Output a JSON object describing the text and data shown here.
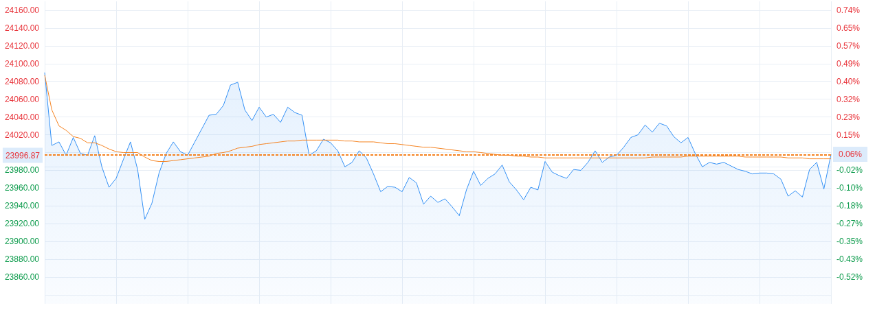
{
  "chart_data": {
    "type": "line",
    "categories": [
      null,
      null,
      null,
      null,
      null,
      null,
      null,
      null,
      null,
      null,
      null,
      null,
      null,
      null,
      null,
      null,
      null,
      null,
      null,
      null,
      null,
      null,
      null,
      null,
      null,
      null,
      null,
      null,
      null,
      null,
      null,
      null,
      null,
      null,
      null,
      null,
      null,
      null,
      null,
      null,
      null,
      null,
      null,
      null,
      null,
      null,
      null,
      null,
      null,
      null,
      null,
      null,
      null,
      null,
      null,
      null,
      null,
      null,
      null,
      null,
      null,
      null,
      null,
      null,
      null,
      null,
      null,
      null,
      null,
      null,
      null,
      null,
      null,
      null,
      null,
      null,
      null,
      null,
      null,
      null,
      null,
      null,
      null,
      null,
      null,
      null,
      null,
      null,
      null,
      null,
      null,
      null,
      null,
      null,
      null,
      null,
      null,
      null,
      null,
      null,
      null,
      null,
      null,
      null,
      null,
      null,
      null,
      null,
      null,
      null,
      null
    ],
    "series": [
      {
        "type": "area",
        "color": "#3390f5",
        "values": [
          24090,
          24008,
          24012,
          23997,
          24017,
          23999,
          23997,
          24019,
          23984,
          23961,
          23971,
          23992,
          24012,
          23981,
          23925,
          23943,
          23977,
          23999,
          24012,
          24001,
          23997,
          24012,
          24027,
          24042,
          24043,
          24053,
          24076,
          24079,
          24048,
          24036,
          24051,
          24040,
          24043,
          24034,
          24051,
          24045,
          24042,
          23997,
          24002,
          24015,
          24011,
          24002,
          23984,
          23989,
          24002,
          23994,
          23976,
          23956,
          23962,
          23961,
          23956,
          23972,
          23966,
          23942,
          23951,
          23944,
          23948,
          23939,
          23929,
          23958,
          23979,
          23963,
          23971,
          23976,
          23986,
          23967,
          23958,
          23947,
          23961,
          23958,
          23990,
          23978,
          23974,
          23971,
          23981,
          23980,
          23989,
          24002,
          23989,
          23995,
          23997,
          24006,
          24017,
          24020,
          24031,
          24023,
          24033,
          24030,
          24018,
          24011,
          24017,
          23999,
          23984,
          23989,
          23987,
          23989,
          23985,
          23981,
          23979,
          23976,
          23977,
          23977,
          23976,
          23970,
          23951,
          23957,
          23950,
          23981,
          23989,
          23959,
          23998
        ]
      },
      {
        "type": "line",
        "color": "#f5821f",
        "values": [
          24087,
          24048,
          24030,
          24025,
          24018,
          24016,
          24011,
          24011,
          24008,
          24004,
          24001,
          24000,
          24000,
          24000,
          23995,
          23991,
          23990,
          23990,
          23991,
          23992,
          23993,
          23994,
          23995,
          23996,
          23999,
          24000,
          24002,
          24005,
          24006,
          24007,
          24009,
          24010,
          24011,
          24012,
          24013,
          24013,
          24014,
          24014,
          24014,
          24014,
          24014,
          24014,
          24013,
          24013,
          24012,
          24012,
          24012,
          24011,
          24010,
          24010,
          24009,
          24008,
          24007,
          24006,
          24006,
          24005,
          24004,
          24003,
          24002,
          24001,
          24001,
          24000,
          23999,
          23998,
          23997,
          23997,
          23996,
          23996,
          23995,
          23995,
          23994,
          23994,
          23994,
          23994,
          23994,
          23994,
          23994,
          23994,
          23994,
          23994,
          23994,
          23994,
          23994,
          23994,
          23994,
          23995,
          23995,
          23995,
          23995,
          23995,
          23996,
          23996,
          23996,
          23996,
          23996,
          23996,
          23996,
          23996,
          23995,
          23995,
          23995,
          23995,
          23995,
          23995,
          23994,
          23994,
          23994,
          23993,
          23993,
          23993,
          23993
        ]
      }
    ],
    "ylim": [
      23830,
      24170
    ],
    "yticks": [
      {
        "value": 23840,
        "label": null
      },
      {
        "value": 23860,
        "label": "23860.00"
      },
      {
        "value": 23880,
        "label": "23880.00"
      },
      {
        "value": 23900,
        "label": "23900.00"
      },
      {
        "value": 23920,
        "label": "23920.00"
      },
      {
        "value": 23940,
        "label": "23940.00"
      },
      {
        "value": 23960,
        "label": "23960.00"
      },
      {
        "value": 23980,
        "label": "23980.00"
      },
      {
        "value": 24000,
        "label": null
      },
      {
        "value": 24020,
        "label": "24020.00"
      },
      {
        "value": 24040,
        "label": "24040.00"
      },
      {
        "value": 24060,
        "label": "24060.00"
      },
      {
        "value": 24080,
        "label": "24080.00"
      },
      {
        "value": 24100,
        "label": "24100.00"
      },
      {
        "value": 24120,
        "label": "24120.00"
      },
      {
        "value": 24140,
        "label": "24140.00"
      },
      {
        "value": 24160,
        "label": "24160.00"
      }
    ],
    "y2lim": [
      -0.646,
      0.782
    ],
    "y2ticks": [
      {
        "value": -0.52,
        "label": "-0.52%"
      },
      {
        "value": -0.4349,
        "label": "-0.43%"
      },
      {
        "value": -0.352,
        "label": "-0.35%"
      },
      {
        "value": -0.268,
        "label": "-0.27%"
      },
      {
        "value": -0.184,
        "label": "-0.18%"
      },
      {
        "value": -0.1,
        "label": "-0.10%"
      },
      {
        "value": -0.016,
        "label": "-0.02%"
      },
      {
        "value": 0.152,
        "label": "0.15%"
      },
      {
        "value": 0.2349,
        "label": "0.23%"
      },
      {
        "value": 0.32,
        "label": "0.32%"
      },
      {
        "value": 0.404,
        "label": "0.40%"
      },
      {
        "value": 0.488,
        "label": "0.49%"
      },
      {
        "value": 0.572,
        "label": "0.57%"
      },
      {
        "value": 0.6549,
        "label": "0.65%"
      },
      {
        "value": 0.74,
        "label": "0.74%"
      }
    ],
    "ref_lines": [
      {
        "axis": "y",
        "value": 23996.87,
        "label": "23996.87",
        "color": "#f5821f",
        "line_style": "dashed"
      },
      {
        "axis": "y2",
        "value": 0.055,
        "label": "0.06%",
        "color": "#f5821f",
        "line_style": "dashed"
      }
    ],
    "grid": true,
    "marker": "none"
  }
}
